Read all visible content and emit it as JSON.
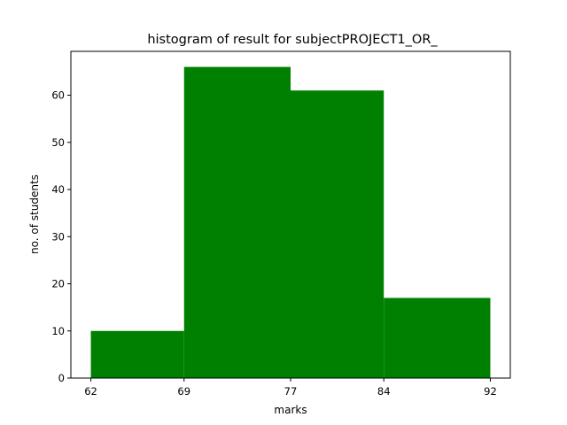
{
  "chart_data": {
    "type": "bar",
    "title": "histogram of result for subjectPROJECT1_OR_",
    "xlabel": "marks",
    "ylabel": "no. of students",
    "bins": [
      {
        "start": 62,
        "end": 69,
        "value": 10
      },
      {
        "start": 69,
        "end": 77,
        "value": 66
      },
      {
        "start": 77,
        "end": 84,
        "value": 61
      },
      {
        "start": 84,
        "end": 92,
        "value": 17
      }
    ],
    "xticks": [
      62,
      69,
      77,
      84,
      92
    ],
    "yticks": [
      0,
      10,
      20,
      30,
      40,
      50,
      60
    ],
    "xlim": [
      60.5,
      93.5
    ],
    "ylim": [
      0,
      69.3
    ],
    "bar_color": "#008000",
    "grid": false,
    "legend": "none"
  }
}
